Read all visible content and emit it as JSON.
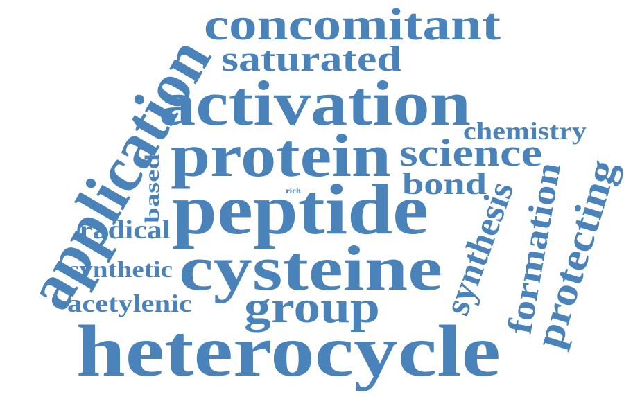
{
  "colors": {
    "word": "#4a82ba",
    "background": "#ffffff"
  },
  "words": {
    "concomitant": "concomitant",
    "saturated": "saturated",
    "application": "application",
    "activation": "activation",
    "chemistry": "chemistry",
    "protein": "protein",
    "science": "science",
    "based": "based",
    "rich": "rich",
    "bond": "bond",
    "peptide": "peptide",
    "radical": "radical",
    "synthesis": "synthesis",
    "formation": "formation",
    "protecting": "protecting",
    "synthetic": "synthetic",
    "cysteine": "cysteine",
    "acetylenic": "acetylenic",
    "group": "group",
    "heterocycle": "heterocycle"
  }
}
